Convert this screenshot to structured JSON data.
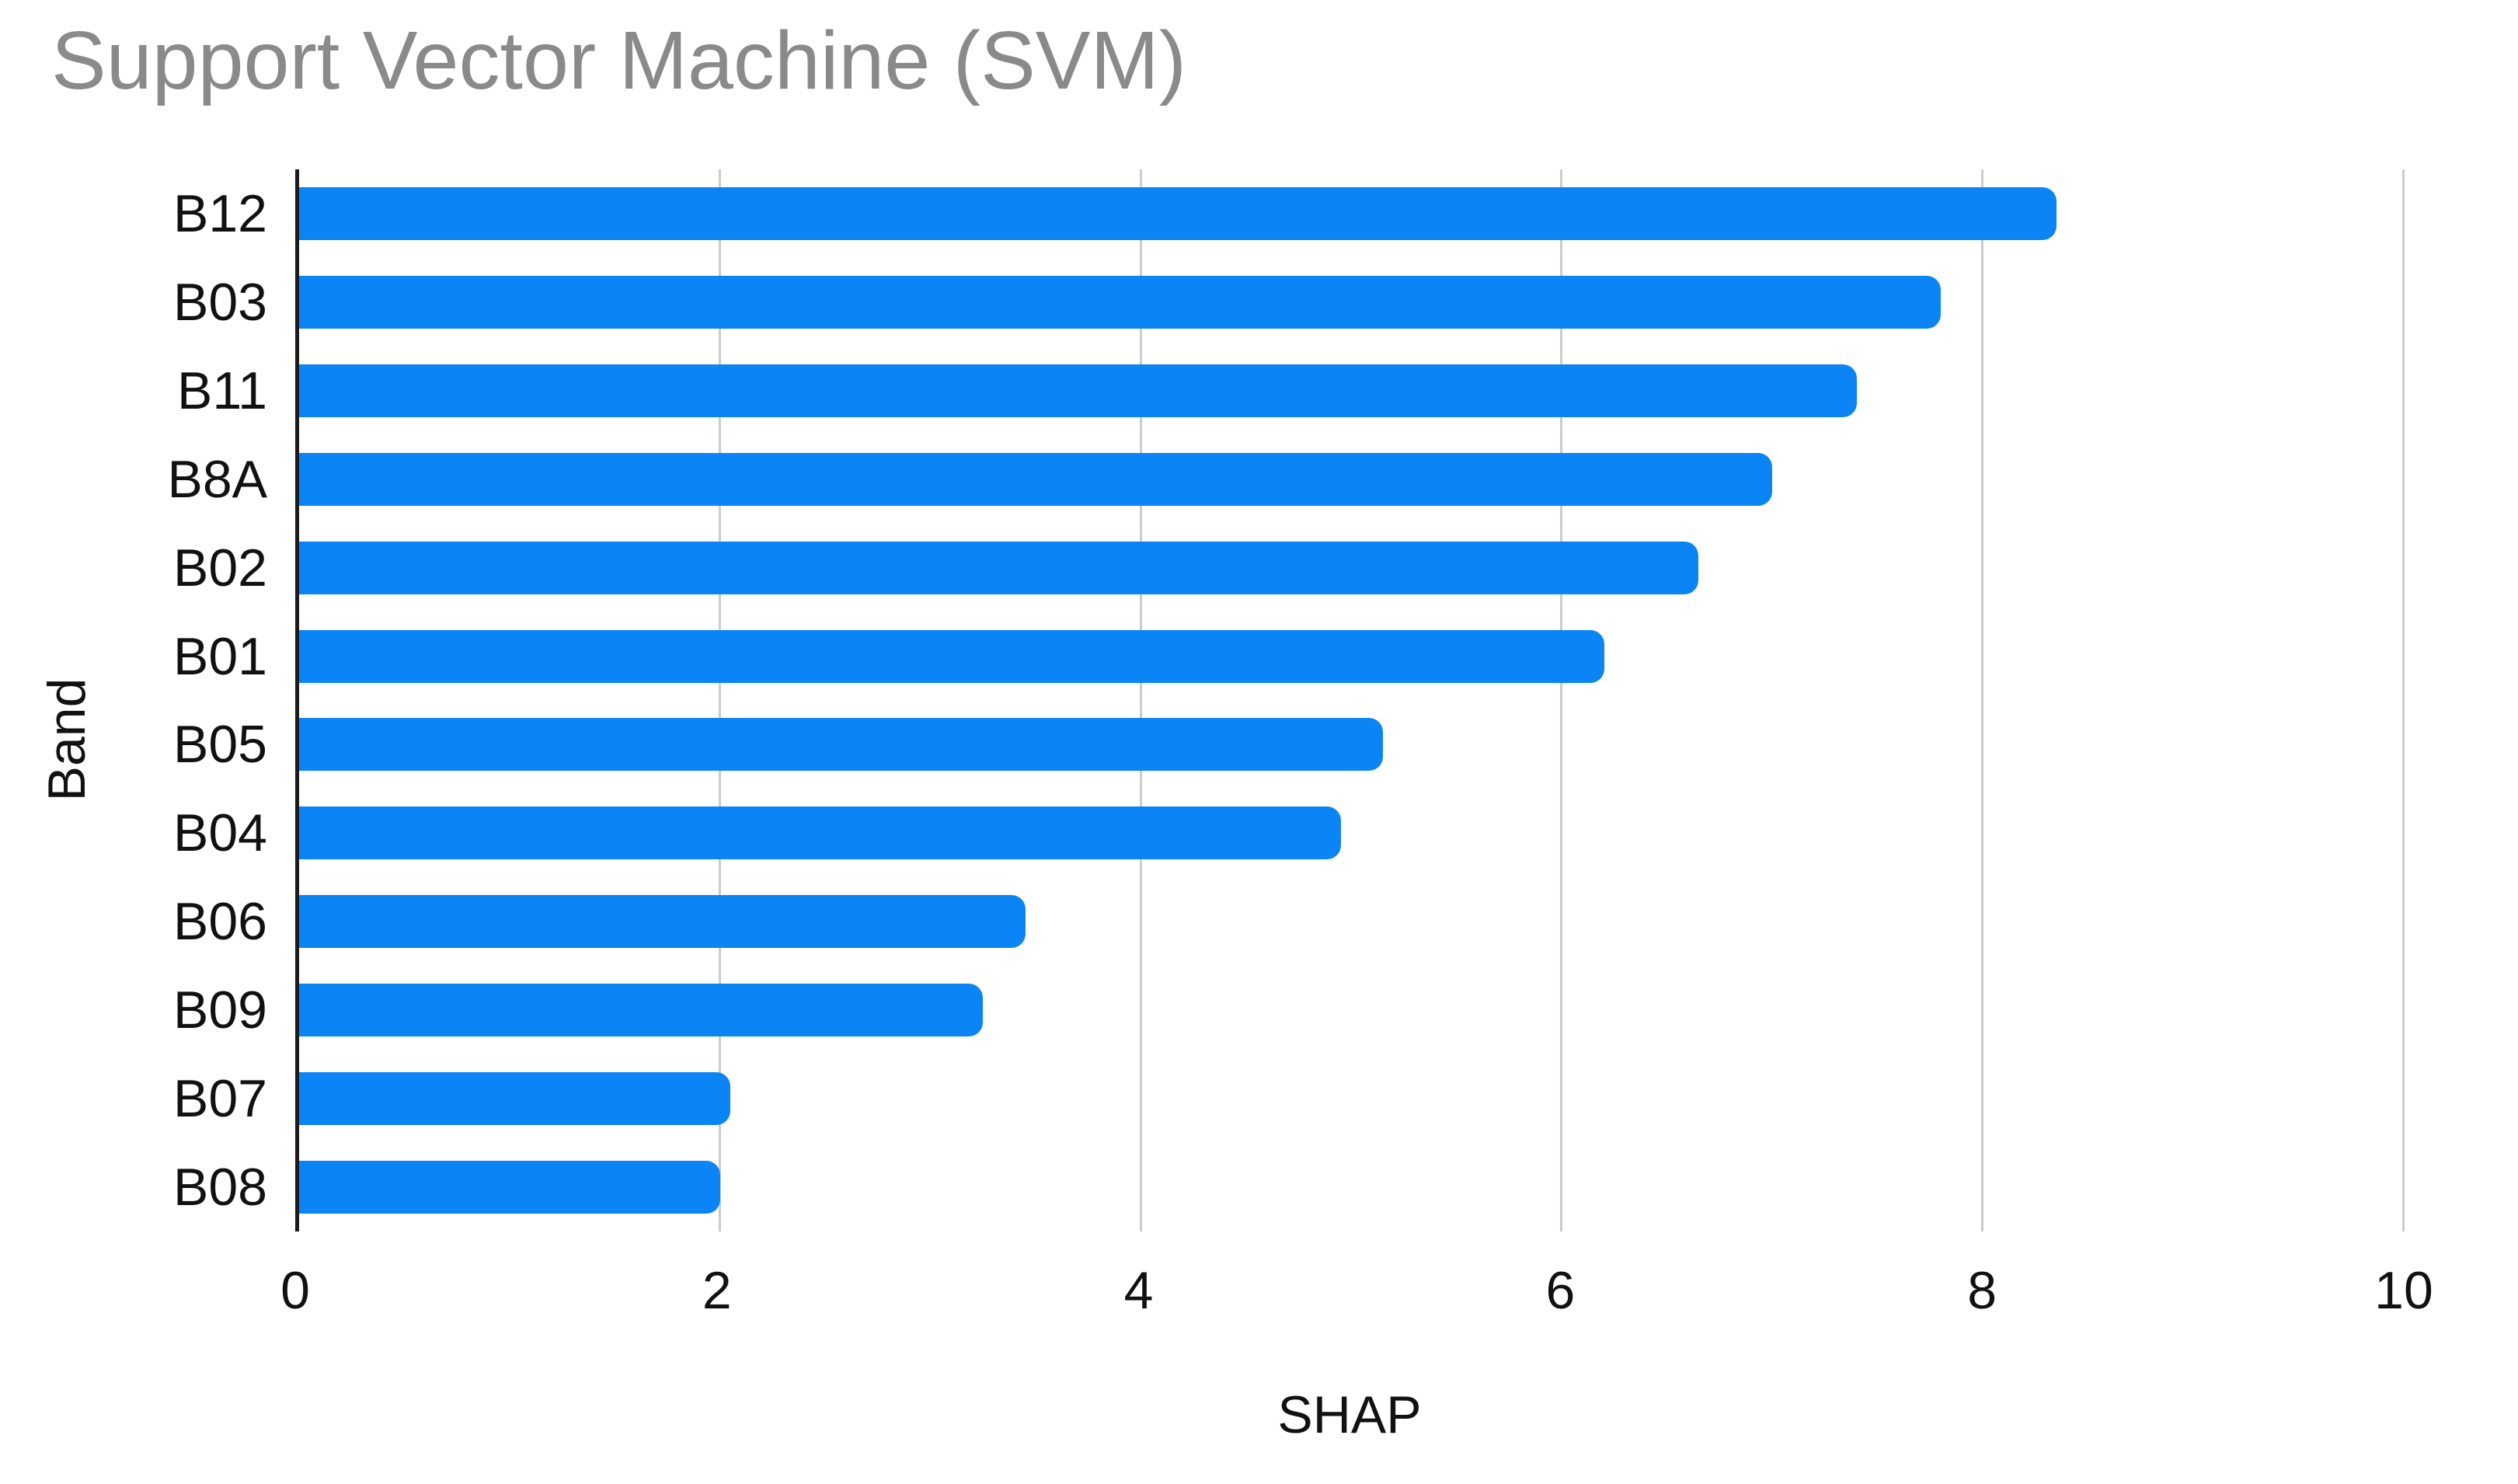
{
  "title": "Support Vector Machine (SVM)",
  "colors": {
    "bar": "#0b85f5",
    "title_text": "#8a8a8a",
    "axis_text": "#111111",
    "gridline": "#cccccc",
    "axis_line": "#1b1b1b",
    "background": "#ffffff"
  },
  "chart_data": {
    "type": "bar",
    "orientation": "horizontal",
    "title": "Support Vector Machine (SVM)",
    "xlabel": "SHAP",
    "ylabel": "Band",
    "categories": [
      "B12",
      "B03",
      "B11",
      "B8A",
      "B02",
      "B01",
      "B05",
      "B04",
      "B06",
      "B09",
      "B07",
      "B08"
    ],
    "values": [
      8.35,
      7.8,
      7.4,
      7.0,
      6.65,
      6.2,
      5.15,
      4.95,
      3.45,
      3.25,
      2.05,
      2.0
    ],
    "xlim": [
      0,
      10
    ],
    "xticks": [
      0,
      2,
      4,
      6,
      8,
      10
    ],
    "grid": "vertical-gridlines-on",
    "legend": "none",
    "bar_color": "#0b85f5"
  }
}
